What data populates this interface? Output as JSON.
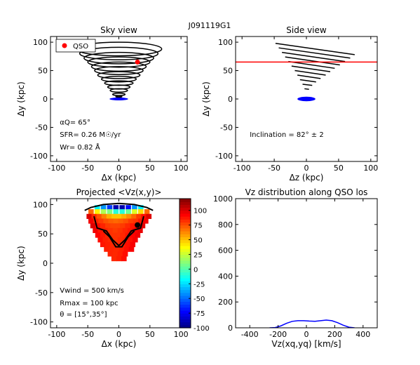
{
  "figure_title": "J091119G1",
  "chart_data": [
    {
      "id": "sky",
      "type": "line",
      "title": "Sky view",
      "xlabel": "Δx (kpc)",
      "ylabel": "Δy (kpc)",
      "xlim": [
        -110,
        110
      ],
      "ylim": [
        -110,
        110
      ],
      "xticks": [
        -100,
        -50,
        0,
        50,
        100
      ],
      "yticks": [
        -100,
        -50,
        0,
        50,
        100
      ],
      "legend": {
        "position": "top-left",
        "entries": [
          {
            "label": "QSO",
            "color": "#ff0000"
          }
        ]
      },
      "qso": {
        "x": 30,
        "y": 65
      },
      "ellipses": [
        {
          "cy": 4,
          "rx": 5,
          "ry": 1
        },
        {
          "cy": 8,
          "rx": 10,
          "ry": 2
        },
        {
          "cy": 15,
          "rx": 14,
          "ry": 3
        },
        {
          "cy": 21,
          "rx": 18,
          "ry": 3.5
        },
        {
          "cy": 28,
          "rx": 23,
          "ry": 4
        },
        {
          "cy": 35,
          "rx": 28,
          "ry": 5
        },
        {
          "cy": 42,
          "rx": 34,
          "ry": 6
        },
        {
          "cy": 50,
          "rx": 39,
          "ry": 7
        },
        {
          "cy": 57,
          "rx": 44,
          "ry": 8
        },
        {
          "cy": 65,
          "rx": 50,
          "ry": 9
        },
        {
          "cy": 72,
          "rx": 56,
          "ry": 10
        },
        {
          "cy": 80,
          "rx": 63,
          "ry": 11
        },
        {
          "cy": 88,
          "rx": 69,
          "ry": 12
        }
      ],
      "galaxy": {
        "cx": 0,
        "cy": 0,
        "rx": 15,
        "ry": 2.5,
        "color": "#0000ff"
      },
      "annotations": [
        {
          "text": "αQ= 65°",
          "x": -95,
          "y": -45
        },
        {
          "text": "SFR= 0.26 M☉/yr",
          "x": -95,
          "y": -67
        },
        {
          "text": "Wr= 0.82 Å",
          "x": -95,
          "y": -89
        }
      ]
    },
    {
      "id": "side",
      "type": "line",
      "title": "Side view",
      "xlabel": "Δz (kpc)",
      "ylabel": "Δy (kpc)",
      "xlim": [
        -110,
        110
      ],
      "ylim": [
        -110,
        110
      ],
      "xticks": [
        -100,
        -50,
        0,
        50,
        100
      ],
      "yticks": [
        -100,
        -50,
        0,
        50,
        100
      ],
      "los_line": {
        "y": 65,
        "color": "#ff0000"
      },
      "segments": [
        {
          "x1": -48,
          "y1": 98,
          "x2": 75,
          "y2": 78
        },
        {
          "x1": -43,
          "y1": 90,
          "x2": 68,
          "y2": 72
        },
        {
          "x1": -38,
          "y1": 82,
          "x2": 60,
          "y2": 66
        },
        {
          "x1": -33,
          "y1": 74,
          "x2": 52,
          "y2": 60
        },
        {
          "x1": -28,
          "y1": 66,
          "x2": 44,
          "y2": 54
        },
        {
          "x1": -23,
          "y1": 58,
          "x2": 37,
          "y2": 48
        },
        {
          "x1": -18,
          "y1": 50,
          "x2": 30,
          "y2": 42
        },
        {
          "x1": -14,
          "y1": 42,
          "x2": 22,
          "y2": 36
        },
        {
          "x1": -10,
          "y1": 34,
          "x2": 15,
          "y2": 30
        },
        {
          "x1": -6,
          "y1": 26,
          "x2": 9,
          "y2": 24
        },
        {
          "x1": -3,
          "y1": 18,
          "x2": 4,
          "y2": 17
        }
      ],
      "galaxy": {
        "cx": 0,
        "cy": 0,
        "rx": 14,
        "ry": 4,
        "color": "#0000ff"
      },
      "annotations": [
        {
          "text": "Inclination =  82°  ±  2",
          "x": -88,
          "y": -67
        }
      ]
    },
    {
      "id": "projected",
      "type": "heatmap",
      "title": "Projected  <Vz(x,y)>",
      "xlabel": "Δx (kpc)",
      "ylabel": "Δy (kpc)",
      "xlim": [
        -110,
        110
      ],
      "ylim": [
        -110,
        110
      ],
      "xticks": [
        -100,
        -50,
        0,
        50,
        100
      ],
      "yticks": [
        -100,
        -50,
        0,
        50,
        100
      ],
      "colorbar": {
        "min": -100,
        "max": 120,
        "ticks": [
          -100,
          -75,
          -50,
          -25,
          0,
          25,
          50,
          75,
          100
        ]
      },
      "qso": {
        "x": 30,
        "y": 65
      },
      "cells": [
        [
          -35,
          95,
          -20
        ],
        [
          -25,
          95,
          -40
        ],
        [
          -15,
          95,
          -60
        ],
        [
          -5,
          95,
          -90
        ],
        [
          5,
          95,
          -90
        ],
        [
          15,
          95,
          -70
        ],
        [
          25,
          95,
          -40
        ],
        [
          35,
          95,
          -20
        ],
        [
          -45,
          88,
          70
        ],
        [
          -35,
          88,
          40
        ],
        [
          -25,
          88,
          20
        ],
        [
          -15,
          88,
          10
        ],
        [
          -5,
          88,
          -10
        ],
        [
          5,
          88,
          -10
        ],
        [
          15,
          88,
          5
        ],
        [
          25,
          88,
          30
        ],
        [
          35,
          88,
          45
        ],
        [
          45,
          88,
          70
        ],
        [
          -48,
          80,
          100
        ],
        [
          -40,
          80,
          85
        ],
        [
          -32,
          80,
          75
        ],
        [
          -24,
          80,
          65
        ],
        [
          -16,
          80,
          55
        ],
        [
          -8,
          80,
          50
        ],
        [
          0,
          80,
          50
        ],
        [
          8,
          80,
          55
        ],
        [
          16,
          80,
          62
        ],
        [
          24,
          80,
          70
        ],
        [
          32,
          80,
          80
        ],
        [
          40,
          80,
          90
        ],
        [
          48,
          80,
          100
        ],
        [
          -45,
          72,
          95
        ],
        [
          -37,
          72,
          85
        ],
        [
          -29,
          72,
          80
        ],
        [
          -21,
          72,
          75
        ],
        [
          -13,
          72,
          72
        ],
        [
          -5,
          72,
          70
        ],
        [
          3,
          72,
          72
        ],
        [
          11,
          72,
          75
        ],
        [
          19,
          72,
          80
        ],
        [
          27,
          72,
          82
        ],
        [
          35,
          72,
          88
        ],
        [
          43,
          72,
          95
        ],
        [
          -42,
          64,
          100
        ],
        [
          -34,
          64,
          90
        ],
        [
          -26,
          64,
          85
        ],
        [
          -18,
          64,
          80
        ],
        [
          -10,
          64,
          78
        ],
        [
          -2,
          64,
          78
        ],
        [
          6,
          64,
          80
        ],
        [
          14,
          64,
          84
        ],
        [
          22,
          64,
          88
        ],
        [
          30,
          64,
          92
        ],
        [
          38,
          64,
          98
        ],
        [
          -38,
          56,
          95
        ],
        [
          -30,
          56,
          88
        ],
        [
          -22,
          56,
          85
        ],
        [
          -14,
          56,
          82
        ],
        [
          -6,
          56,
          80
        ],
        [
          2,
          56,
          82
        ],
        [
          10,
          56,
          85
        ],
        [
          18,
          56,
          88
        ],
        [
          26,
          56,
          92
        ],
        [
          34,
          56,
          97
        ],
        [
          -34,
          48,
          92
        ],
        [
          -26,
          48,
          88
        ],
        [
          -18,
          48,
          84
        ],
        [
          -10,
          48,
          82
        ],
        [
          -2,
          48,
          82
        ],
        [
          6,
          48,
          84
        ],
        [
          14,
          48,
          88
        ],
        [
          22,
          48,
          92
        ],
        [
          30,
          48,
          96
        ],
        [
          -30,
          40,
          90
        ],
        [
          -22,
          40,
          86
        ],
        [
          -14,
          40,
          84
        ],
        [
          -6,
          40,
          82
        ],
        [
          2,
          40,
          84
        ],
        [
          10,
          40,
          86
        ],
        [
          18,
          40,
          90
        ],
        [
          26,
          40,
          94
        ],
        [
          -26,
          32,
          88
        ],
        [
          -18,
          32,
          86
        ],
        [
          -10,
          32,
          84
        ],
        [
          -2,
          32,
          84
        ],
        [
          6,
          32,
          86
        ],
        [
          14,
          32,
          90
        ],
        [
          22,
          32,
          94
        ],
        [
          -20,
          24,
          86
        ],
        [
          -12,
          24,
          85
        ],
        [
          -4,
          24,
          84
        ],
        [
          4,
          24,
          86
        ],
        [
          12,
          24,
          90
        ],
        [
          20,
          24,
          94
        ],
        [
          -14,
          16,
          85
        ],
        [
          -6,
          16,
          84
        ],
        [
          2,
          16,
          86
        ],
        [
          10,
          16,
          90
        ],
        [
          -8,
          8,
          84
        ],
        [
          0,
          8,
          86
        ],
        [
          8,
          8,
          90
        ]
      ],
      "contours": [
        [
          [
            -55,
            90
          ],
          [
            -45,
            95
          ],
          [
            -25,
            100
          ],
          [
            0,
            102
          ],
          [
            25,
            100
          ],
          [
            45,
            95
          ],
          [
            55,
            90
          ]
        ],
        [
          [
            -40,
            80
          ],
          [
            -35,
            60
          ],
          [
            -20,
            55
          ],
          [
            -10,
            40
          ],
          [
            0,
            30
          ],
          [
            10,
            40
          ],
          [
            20,
            55
          ],
          [
            35,
            60
          ],
          [
            40,
            80
          ]
        ],
        [
          [
            -25,
            55
          ],
          [
            -15,
            45
          ],
          [
            -5,
            28
          ],
          [
            5,
            28
          ],
          [
            15,
            45
          ],
          [
            25,
            55
          ]
        ]
      ],
      "annotations": [
        {
          "text": "Vwind = 500 km/s",
          "x": -95,
          "y": -50
        },
        {
          "text": "Rmax = 100 kpc",
          "x": -95,
          "y": -72
        },
        {
          "text": "θ = [15°,35°]",
          "x": -95,
          "y": -91
        }
      ]
    },
    {
      "id": "vz",
      "type": "line",
      "title": "Vz distribution along QSO los",
      "xlabel": "Vz(xq,yq) [km/s]",
      "ylabel": "",
      "xlim": [
        -500,
        500
      ],
      "ylim": [
        0,
        1000
      ],
      "xticks": [
        -400,
        -200,
        0,
        200,
        400
      ],
      "yticks": [
        0,
        200,
        400,
        600,
        800,
        1000
      ],
      "series": [
        {
          "color": "#0000ff",
          "x": [
            -260,
            -220,
            -180,
            -140,
            -100,
            -60,
            -20,
            20,
            60,
            100,
            140,
            180,
            220,
            260,
            300,
            340
          ],
          "y": [
            0,
            2,
            15,
            35,
            50,
            55,
            55,
            52,
            50,
            55,
            60,
            55,
            40,
            20,
            5,
            0
          ]
        }
      ]
    }
  ]
}
